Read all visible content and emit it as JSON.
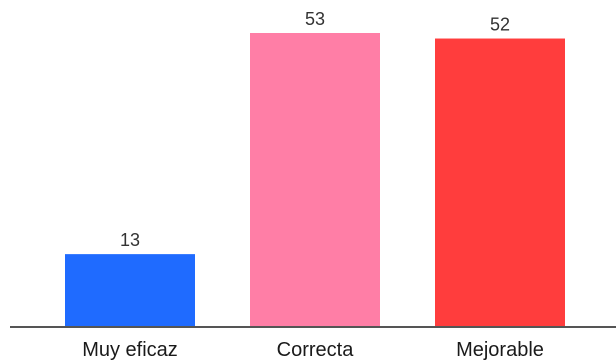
{
  "chart_data": {
    "type": "bar",
    "categories": [
      "Muy eficaz",
      "Correcta",
      "Mejorable"
    ],
    "values": [
      13,
      53,
      52
    ],
    "colors": [
      "#1f6bff",
      "#ff7ea6",
      "#ff3d3d"
    ],
    "axis_color": "#555555",
    "value_label_color": "#333333",
    "ylim": [
      0,
      53
    ],
    "grid": false,
    "legend": "none",
    "data_labels": true
  }
}
